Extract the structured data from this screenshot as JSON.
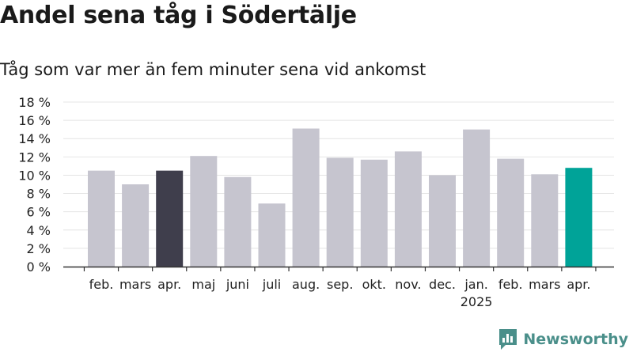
{
  "title": "Andel sena tåg i Södertälje",
  "subtitle": "Tåg som var mer än fem minuter sena vid ankomst",
  "brand": {
    "name": "Newsworthy",
    "icon": "newsworthy-logo-icon",
    "color": "#4a8f8a"
  },
  "colors": {
    "bar_default": "#c6c5cf",
    "bar_dark": "#3f3e4c",
    "bar_highlight": "#00a398",
    "grid": "#e4e4e4",
    "axis": "#333333"
  },
  "chart_data": {
    "type": "bar",
    "title": "Andel sena tåg i Södertälje",
    "subtitle": "Tåg som var mer än fem minuter sena vid ankomst",
    "categories": [
      "feb.",
      "mars",
      "apr.",
      "maj",
      "juni",
      "juli",
      "aug.",
      "sep.",
      "okt.",
      "nov.",
      "dec.",
      "jan.",
      "feb.",
      "mars",
      "apr."
    ],
    "year_label": {
      "text": "2025",
      "under_category": 11
    },
    "values": [
      10.5,
      9.0,
      10.5,
      12.1,
      9.8,
      6.9,
      15.1,
      11.9,
      11.7,
      12.6,
      10.0,
      15.0,
      11.8,
      10.1,
      10.8
    ],
    "bar_color_keys": [
      "bar_default",
      "bar_default",
      "bar_dark",
      "bar_default",
      "bar_default",
      "bar_default",
      "bar_default",
      "bar_default",
      "bar_default",
      "bar_default",
      "bar_default",
      "bar_default",
      "bar_default",
      "bar_default",
      "bar_highlight"
    ],
    "y_ticks": [
      "0 %",
      "2 %",
      "4 %",
      "6 %",
      "8 %",
      "10 %",
      "12 %",
      "14 %",
      "16 %",
      "18 %"
    ],
    "y_tick_values": [
      0,
      2,
      4,
      6,
      8,
      10,
      12,
      14,
      16,
      18
    ],
    "ylim": [
      0,
      18
    ],
    "grid": true,
    "legend": false,
    "xlabel": "",
    "ylabel": ""
  }
}
